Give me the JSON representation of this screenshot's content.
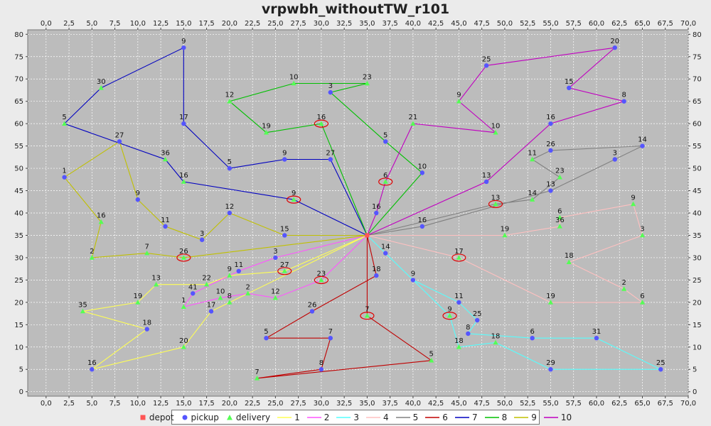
{
  "chart_data": {
    "type": "scatter",
    "title": "vrpwbh_withoutTW_r101",
    "xlim": [
      -2,
      70
    ],
    "ylim": [
      -1,
      81
    ],
    "x_ticks": [
      "0,0",
      "2,5",
      "5,0",
      "7,5",
      "10,0",
      "12,5",
      "15,0",
      "17,5",
      "20,0",
      "22,5",
      "25,0",
      "27,5",
      "30,0",
      "32,5",
      "35,0",
      "37,5",
      "40,0",
      "42,5",
      "45,0",
      "47,5",
      "50,0",
      "52,5",
      "55,0",
      "57,5",
      "60,0",
      "62,5",
      "65,0",
      "67,5",
      "70,0"
    ],
    "y_ticks": [
      "0",
      "5",
      "10",
      "15",
      "20",
      "25",
      "30",
      "35",
      "40",
      "45",
      "50",
      "55",
      "60",
      "65",
      "70",
      "75",
      "80"
    ],
    "grid": true,
    "legend_position": "bottom",
    "legend": [
      {
        "label": "depot",
        "color": "#ff5555",
        "marker": "square"
      },
      {
        "label": "pickup",
        "color": "#5555ff",
        "marker": "circle"
      },
      {
        "label": "delivery",
        "color": "#55ff55",
        "marker": "triangle"
      },
      {
        "label": "1",
        "color": "#ffff55",
        "marker": "line"
      },
      {
        "label": "2",
        "color": "#ff55ff",
        "marker": "line"
      },
      {
        "label": "3",
        "color": "#55ffff",
        "marker": "line"
      },
      {
        "label": "4",
        "color": "#ffc0c0",
        "marker": "line"
      },
      {
        "label": "5",
        "color": "#808080",
        "marker": "line"
      },
      {
        "label": "6",
        "color": "#c00000",
        "marker": "line"
      },
      {
        "label": "7",
        "color": "#0000c0",
        "marker": "line"
      },
      {
        "label": "8",
        "color": "#00c000",
        "marker": "line"
      },
      {
        "label": "9",
        "color": "#c0c000",
        "marker": "line"
      },
      {
        "label": "10",
        "color": "#c000c0",
        "marker": "line"
      }
    ],
    "depot": {
      "x": 35,
      "y": 35
    },
    "series": [
      {
        "name": "1",
        "color": "#ffff55",
        "points": [
          {
            "x": 35,
            "y": 35,
            "label": "",
            "kind": "depot"
          },
          {
            "x": 20,
            "y": 20,
            "label": "8",
            "kind": "delivery"
          },
          {
            "x": 18,
            "y": 18,
            "label": "17",
            "kind": "pickup"
          },
          {
            "x": 15,
            "y": 10,
            "label": "20",
            "kind": "delivery"
          },
          {
            "x": 5,
            "y": 5,
            "label": "16",
            "kind": "pickup"
          },
          {
            "x": 11,
            "y": 14,
            "label": "18",
            "kind": "pickup"
          },
          {
            "x": 4,
            "y": 18,
            "label": "35",
            "kind": "delivery"
          },
          {
            "x": 10,
            "y": 20,
            "label": "19",
            "kind": "delivery"
          },
          {
            "x": 12,
            "y": 24,
            "label": "13",
            "kind": "delivery"
          },
          {
            "x": 17.5,
            "y": 24,
            "label": "22",
            "kind": "delivery"
          },
          {
            "x": 20,
            "y": 26,
            "label": "9",
            "kind": "delivery"
          },
          {
            "x": 26,
            "y": 27,
            "label": "27",
            "kind": "delivery",
            "circled": true
          },
          {
            "x": 35,
            "y": 35,
            "label": "",
            "kind": "depot"
          }
        ]
      },
      {
        "name": "2",
        "color": "#ff55ff",
        "points": [
          {
            "x": 35,
            "y": 35,
            "label": "",
            "kind": "depot"
          },
          {
            "x": 25,
            "y": 30,
            "label": "3",
            "kind": "pickup"
          },
          {
            "x": 21,
            "y": 27,
            "label": "11",
            "kind": "pickup"
          },
          {
            "x": 16,
            "y": 22,
            "label": "41",
            "kind": "pickup"
          },
          {
            "x": 15,
            "y": 19,
            "label": "1",
            "kind": "delivery"
          },
          {
            "x": 19,
            "y": 21,
            "label": "10",
            "kind": "delivery"
          },
          {
            "x": 22,
            "y": 22,
            "label": "2",
            "kind": "delivery"
          },
          {
            "x": 25,
            "y": 21,
            "label": "12",
            "kind": "delivery"
          },
          {
            "x": 30,
            "y": 25,
            "label": "23",
            "kind": "delivery",
            "circled": true
          },
          {
            "x": 35,
            "y": 35,
            "label": "",
            "kind": "depot"
          }
        ]
      },
      {
        "name": "3",
        "color": "#55ffff",
        "points": [
          {
            "x": 35,
            "y": 35,
            "label": "",
            "kind": "depot"
          },
          {
            "x": 37,
            "y": 31,
            "label": "14",
            "kind": "pickup"
          },
          {
            "x": 40,
            "y": 25,
            "label": "9",
            "kind": "pickup"
          },
          {
            "x": 45,
            "y": 20,
            "label": "11",
            "kind": "pickup"
          },
          {
            "x": 47,
            "y": 16,
            "label": "25",
            "kind": "pickup"
          },
          {
            "x": 46,
            "y": 13,
            "label": "8",
            "kind": "pickup"
          },
          {
            "x": 53,
            "y": 12,
            "label": "6",
            "kind": "pickup"
          },
          {
            "x": 60,
            "y": 12,
            "label": "31",
            "kind": "pickup"
          },
          {
            "x": 67,
            "y": 5,
            "label": "25",
            "kind": "pickup"
          },
          {
            "x": 55,
            "y": 5,
            "label": "29",
            "kind": "pickup"
          },
          {
            "x": 49,
            "y": 11,
            "label": "18",
            "kind": "delivery"
          },
          {
            "x": 45,
            "y": 10,
            "label": "18",
            "kind": "delivery"
          },
          {
            "x": 44,
            "y": 17,
            "label": "9",
            "kind": "delivery",
            "circled": true
          },
          {
            "x": 35,
            "y": 35,
            "label": "",
            "kind": "depot"
          }
        ]
      },
      {
        "name": "4",
        "color": "#ffc0c0",
        "points": [
          {
            "x": 35,
            "y": 35,
            "label": "",
            "kind": "depot"
          },
          {
            "x": 45,
            "y": 30,
            "label": "17",
            "kind": "delivery",
            "circled": true
          },
          {
            "x": 55,
            "y": 20,
            "label": "19",
            "kind": "delivery"
          },
          {
            "x": 65,
            "y": 20,
            "label": "6",
            "kind": "delivery"
          },
          {
            "x": 63,
            "y": 23,
            "label": "2",
            "kind": "delivery"
          },
          {
            "x": 57,
            "y": 29,
            "label": "18",
            "kind": "delivery"
          },
          {
            "x": 65,
            "y": 35,
            "label": "3",
            "kind": "delivery"
          },
          {
            "x": 64,
            "y": 42,
            "label": "9",
            "kind": "delivery"
          },
          {
            "x": 56,
            "y": 39,
            "label": "6",
            "kind": "delivery"
          },
          {
            "x": 56,
            "y": 37,
            "label": "36",
            "kind": "delivery"
          },
          {
            "x": 50,
            "y": 35,
            "label": "19",
            "kind": "delivery"
          },
          {
            "x": 35,
            "y": 35,
            "label": "",
            "kind": "depot"
          }
        ]
      },
      {
        "name": "5",
        "color": "#808080",
        "points": [
          {
            "x": 35,
            "y": 35,
            "label": "",
            "kind": "depot"
          },
          {
            "x": 41,
            "y": 37,
            "label": "16",
            "kind": "pickup"
          },
          {
            "x": 55,
            "y": 45,
            "label": "13",
            "kind": "pickup"
          },
          {
            "x": 62,
            "y": 52,
            "label": "3",
            "kind": "pickup"
          },
          {
            "x": 65,
            "y": 55,
            "label": "14",
            "kind": "pickup"
          },
          {
            "x": 55,
            "y": 54,
            "label": "26",
            "kind": "pickup"
          },
          {
            "x": 53,
            "y": 52,
            "label": "11",
            "kind": "delivery"
          },
          {
            "x": 56,
            "y": 48,
            "label": "23",
            "kind": "delivery"
          },
          {
            "x": 53,
            "y": 43,
            "label": "14",
            "kind": "delivery"
          },
          {
            "x": 49,
            "y": 42,
            "label": "13",
            "kind": "delivery",
            "circled": true
          },
          {
            "x": 35,
            "y": 35,
            "label": "",
            "kind": "depot"
          }
        ]
      },
      {
        "name": "6",
        "color": "#c00000",
        "points": [
          {
            "x": 35,
            "y": 35,
            "label": "",
            "kind": "depot"
          },
          {
            "x": 36,
            "y": 26,
            "label": "18",
            "kind": "pickup"
          },
          {
            "x": 29,
            "y": 18,
            "label": "26",
            "kind": "pickup"
          },
          {
            "x": 24,
            "y": 12,
            "label": "5",
            "kind": "pickup"
          },
          {
            "x": 31,
            "y": 12,
            "label": "7",
            "kind": "pickup"
          },
          {
            "x": 30,
            "y": 5,
            "label": "8",
            "kind": "pickup"
          },
          {
            "x": 23,
            "y": 3,
            "label": "7",
            "kind": "delivery"
          },
          {
            "x": 42,
            "y": 7,
            "label": "5",
            "kind": "delivery"
          },
          {
            "x": 35,
            "y": 17,
            "label": "7",
            "kind": "delivery",
            "circled": true
          },
          {
            "x": 35,
            "y": 35,
            "label": "",
            "kind": "depot"
          }
        ]
      },
      {
        "name": "7",
        "color": "#0000c0",
        "points": [
          {
            "x": 35,
            "y": 35,
            "label": "",
            "kind": "depot"
          },
          {
            "x": 27,
            "y": 43,
            "label": "9",
            "kind": "delivery",
            "circled": true
          },
          {
            "x": 15,
            "y": 47,
            "label": "16",
            "kind": "delivery"
          },
          {
            "x": 13,
            "y": 52,
            "label": "36",
            "kind": "delivery"
          },
          {
            "x": 2,
            "y": 60,
            "label": "5",
            "kind": "delivery"
          },
          {
            "x": 6,
            "y": 68,
            "label": "30",
            "kind": "delivery"
          },
          {
            "x": 15,
            "y": 77,
            "label": "9",
            "kind": "pickup"
          },
          {
            "x": 15,
            "y": 60,
            "label": "17",
            "kind": "pickup"
          },
          {
            "x": 20,
            "y": 50,
            "label": "5",
            "kind": "pickup"
          },
          {
            "x": 26,
            "y": 52,
            "label": "9",
            "kind": "pickup"
          },
          {
            "x": 31,
            "y": 52,
            "label": "27",
            "kind": "pickup"
          },
          {
            "x": 35,
            "y": 35,
            "label": "",
            "kind": "depot"
          }
        ]
      },
      {
        "name": "8",
        "color": "#00c000",
        "points": [
          {
            "x": 35,
            "y": 35,
            "label": "",
            "kind": "depot"
          },
          {
            "x": 30,
            "y": 60,
            "label": "16",
            "kind": "delivery",
            "circled": true
          },
          {
            "x": 24,
            "y": 58,
            "label": "19",
            "kind": "delivery"
          },
          {
            "x": 20,
            "y": 65,
            "label": "12",
            "kind": "delivery"
          },
          {
            "x": 27,
            "y": 69,
            "label": "10",
            "kind": "delivery"
          },
          {
            "x": 35,
            "y": 69,
            "label": "23",
            "kind": "delivery"
          },
          {
            "x": 31,
            "y": 67,
            "label": "3",
            "kind": "pickup"
          },
          {
            "x": 37,
            "y": 56,
            "label": "5",
            "kind": "pickup"
          },
          {
            "x": 41,
            "y": 49,
            "label": "10",
            "kind": "pickup"
          },
          {
            "x": 35,
            "y": 35,
            "label": "",
            "kind": "depot"
          }
        ]
      },
      {
        "name": "9",
        "color": "#c0c000",
        "points": [
          {
            "x": 35,
            "y": 35,
            "label": "",
            "kind": "depot"
          },
          {
            "x": 26,
            "y": 35,
            "label": "15",
            "kind": "pickup"
          },
          {
            "x": 20,
            "y": 40,
            "label": "12",
            "kind": "pickup"
          },
          {
            "x": 17,
            "y": 34,
            "label": "3",
            "kind": "pickup"
          },
          {
            "x": 13,
            "y": 37,
            "label": "11",
            "kind": "pickup"
          },
          {
            "x": 10,
            "y": 43,
            "label": "9",
            "kind": "pickup"
          },
          {
            "x": 8,
            "y": 56,
            "label": "27",
            "kind": "pickup"
          },
          {
            "x": 2,
            "y": 48,
            "label": "1",
            "kind": "pickup"
          },
          {
            "x": 6,
            "y": 38,
            "label": "16",
            "kind": "delivery"
          },
          {
            "x": 5,
            "y": 30,
            "label": "2",
            "kind": "delivery"
          },
          {
            "x": 11,
            "y": 31,
            "label": "7",
            "kind": "delivery"
          },
          {
            "x": 15,
            "y": 30,
            "label": "26",
            "kind": "delivery",
            "circled": true
          },
          {
            "x": 35,
            "y": 35,
            "label": "",
            "kind": "depot"
          }
        ]
      },
      {
        "name": "10",
        "color": "#c000c0",
        "points": [
          {
            "x": 35,
            "y": 35,
            "label": "",
            "kind": "depot"
          },
          {
            "x": 36,
            "y": 40,
            "label": "16",
            "kind": "pickup"
          },
          {
            "x": 37,
            "y": 47,
            "label": "6",
            "kind": "delivery",
            "circled": true
          },
          {
            "x": 40,
            "y": 60,
            "label": "21",
            "kind": "delivery"
          },
          {
            "x": 49,
            "y": 58,
            "label": "10",
            "kind": "delivery"
          },
          {
            "x": 45,
            "y": 65,
            "label": "9",
            "kind": "delivery"
          },
          {
            "x": 48,
            "y": 73,
            "label": "25",
            "kind": "pickup"
          },
          {
            "x": 62,
            "y": 77,
            "label": "20",
            "kind": "pickup"
          },
          {
            "x": 57,
            "y": 68,
            "label": "15",
            "kind": "pickup"
          },
          {
            "x": 63,
            "y": 65,
            "label": "8",
            "kind": "pickup"
          },
          {
            "x": 55,
            "y": 60,
            "label": "16",
            "kind": "pickup"
          },
          {
            "x": 48,
            "y": 47,
            "label": "13",
            "kind": "pickup"
          },
          {
            "x": 35,
            "y": 35,
            "label": "",
            "kind": "depot"
          }
        ]
      }
    ]
  }
}
